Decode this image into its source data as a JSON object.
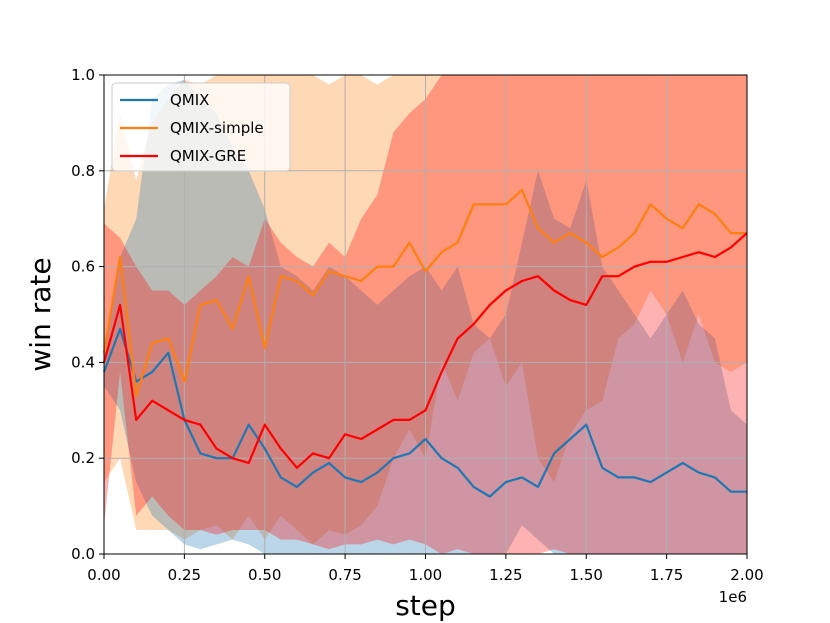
{
  "chart_data": {
    "type": "line",
    "title": "",
    "xlabel": "step",
    "ylabel": "win rate",
    "x_offset_label": "1e6",
    "xlim": [
      0,
      2.0
    ],
    "ylim": [
      0,
      1.0
    ],
    "grid": true,
    "legend_position": "top-left",
    "x_ticks": [
      "0.00",
      "0.25",
      "0.50",
      "0.75",
      "1.00",
      "1.25",
      "1.50",
      "1.75",
      "2.00"
    ],
    "y_ticks": [
      "0.0",
      "0.2",
      "0.4",
      "0.6",
      "0.8",
      "1.0"
    ],
    "x": [
      0.0,
      0.05,
      0.1,
      0.15,
      0.2,
      0.25,
      0.3,
      0.35,
      0.4,
      0.45,
      0.5,
      0.55,
      0.6,
      0.65,
      0.7,
      0.75,
      0.8,
      0.85,
      0.9,
      0.95,
      1.0,
      1.05,
      1.1,
      1.15,
      1.2,
      1.25,
      1.3,
      1.35,
      1.4,
      1.45,
      1.5,
      1.55,
      1.6,
      1.65,
      1.7,
      1.75,
      1.8,
      1.85,
      1.9,
      1.95,
      2.0
    ],
    "series": [
      {
        "name": "QMIX",
        "color": "#1f77b4",
        "band_color": "#1f77b4",
        "band_opacity": 0.3,
        "values": [
          0.38,
          0.47,
          0.36,
          0.38,
          0.42,
          0.28,
          0.21,
          0.2,
          0.2,
          0.27,
          0.22,
          0.16,
          0.14,
          0.17,
          0.19,
          0.16,
          0.15,
          0.17,
          0.2,
          0.21,
          0.24,
          0.2,
          0.18,
          0.14,
          0.12,
          0.15,
          0.16,
          0.14,
          0.21,
          0.24,
          0.27,
          0.18,
          0.16,
          0.16,
          0.15,
          0.17,
          0.19,
          0.17,
          0.16,
          0.13,
          0.13
        ],
        "lower": [
          0.35,
          0.3,
          0.15,
          0.08,
          0.05,
          0.02,
          0.01,
          0.02,
          0.03,
          0.02,
          0.0,
          0.0,
          0.0,
          0.0,
          0.0,
          0.0,
          0.0,
          0.0,
          0.0,
          0.0,
          0.0,
          0.0,
          0.0,
          0.0,
          0.0,
          0.0,
          0.06,
          0.03,
          0.0,
          0.0,
          0.0,
          0.0,
          0.0,
          0.0,
          0.0,
          0.0,
          0.0,
          0.0,
          0.0,
          0.0,
          0.0
        ],
        "upper": [
          0.42,
          0.62,
          0.7,
          0.95,
          0.98,
          0.99,
          0.95,
          0.92,
          0.85,
          0.8,
          0.72,
          0.6,
          0.58,
          0.55,
          0.6,
          0.58,
          0.55,
          0.52,
          0.55,
          0.58,
          0.6,
          0.55,
          0.6,
          0.48,
          0.45,
          0.5,
          0.65,
          0.8,
          0.7,
          0.68,
          0.78,
          0.6,
          0.55,
          0.5,
          0.45,
          0.5,
          0.55,
          0.48,
          0.45,
          0.3,
          0.27
        ]
      },
      {
        "name": "QMIX-simple",
        "color": "#ff7f0e",
        "band_color": "#ff7f0e",
        "band_opacity": 0.3,
        "values": [
          0.42,
          0.62,
          0.33,
          0.44,
          0.45,
          0.36,
          0.52,
          0.53,
          0.47,
          0.58,
          0.43,
          0.58,
          0.57,
          0.54,
          0.59,
          0.58,
          0.57,
          0.6,
          0.6,
          0.65,
          0.59,
          0.63,
          0.65,
          0.73,
          0.73,
          0.73,
          0.76,
          0.68,
          0.65,
          0.67,
          0.65,
          0.62,
          0.64,
          0.67,
          0.73,
          0.7,
          0.68,
          0.73,
          0.71,
          0.67,
          0.67
        ],
        "lower": [
          0.15,
          0.2,
          0.05,
          0.05,
          0.05,
          0.03,
          0.05,
          0.06,
          0.03,
          0.08,
          0.03,
          0.08,
          0.05,
          0.02,
          0.05,
          0.04,
          0.06,
          0.1,
          0.2,
          0.26,
          0.2,
          0.4,
          0.32,
          0.42,
          0.45,
          0.35,
          0.4,
          0.2,
          0.15,
          0.25,
          0.3,
          0.32,
          0.45,
          0.48,
          0.55,
          0.5,
          0.4,
          0.5,
          0.4,
          0.38,
          0.4
        ],
        "upper": [
          0.72,
          0.92,
          0.78,
          0.9,
          0.95,
          0.99,
          0.98,
          1.0,
          1.0,
          1.0,
          1.0,
          1.0,
          1.0,
          1.0,
          0.98,
          1.0,
          1.0,
          0.98,
          1.0,
          1.0,
          1.0,
          1.0,
          1.0,
          1.0,
          1.0,
          1.0,
          1.0,
          1.0,
          1.0,
          1.0,
          1.0,
          1.0,
          1.0,
          1.0,
          1.0,
          1.0,
          1.0,
          1.0,
          1.0,
          1.0,
          1.0
        ]
      },
      {
        "name": "QMIX-GRE",
        "color": "#ff0000",
        "band_color": "#ff0000",
        "band_opacity": 0.3,
        "values": [
          0.4,
          0.52,
          0.28,
          0.32,
          0.3,
          0.28,
          0.27,
          0.22,
          0.2,
          0.19,
          0.27,
          0.22,
          0.18,
          0.21,
          0.2,
          0.25,
          0.24,
          0.26,
          0.28,
          0.28,
          0.3,
          0.38,
          0.45,
          0.48,
          0.52,
          0.55,
          0.57,
          0.58,
          0.55,
          0.53,
          0.52,
          0.58,
          0.58,
          0.6,
          0.61,
          0.61,
          0.62,
          0.63,
          0.62,
          0.64,
          0.67
        ],
        "lower": [
          0.06,
          0.38,
          0.08,
          0.12,
          0.08,
          0.05,
          0.05,
          0.04,
          0.05,
          0.05,
          0.05,
          0.03,
          0.03,
          0.02,
          0.01,
          0.02,
          0.02,
          0.03,
          0.02,
          0.03,
          0.02,
          0.0,
          0.01,
          0.0,
          0.0,
          0.0,
          0.0,
          0.0,
          0.01,
          0.0,
          0.0,
          0.0,
          0.0,
          0.0,
          0.0,
          0.0,
          0.0,
          0.0,
          0.0,
          0.0,
          0.0
        ],
        "upper": [
          0.69,
          0.66,
          0.6,
          0.55,
          0.55,
          0.52,
          0.55,
          0.58,
          0.62,
          0.6,
          0.7,
          0.65,
          0.62,
          0.6,
          0.65,
          0.62,
          0.7,
          0.75,
          0.88,
          0.92,
          0.95,
          1.0,
          1.0,
          1.0,
          1.0,
          1.0,
          1.0,
          1.0,
          1.0,
          1.0,
          1.0,
          1.0,
          1.0,
          1.0,
          1.0,
          1.0,
          1.0,
          1.0,
          1.0,
          1.0,
          1.0
        ]
      }
    ]
  }
}
